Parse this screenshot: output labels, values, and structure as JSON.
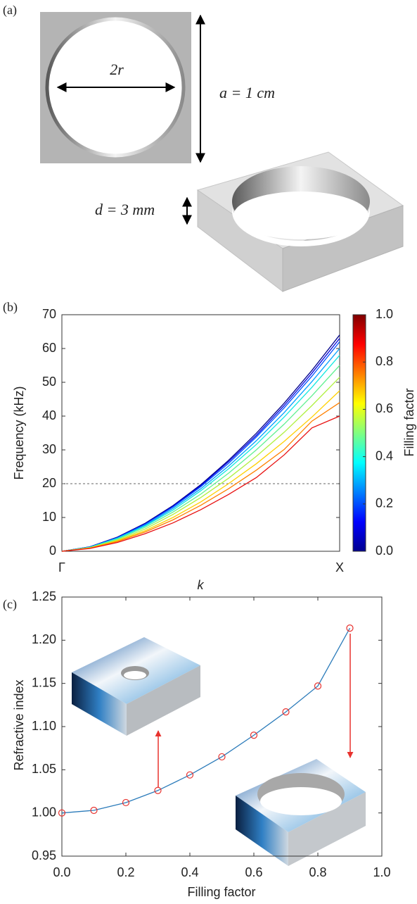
{
  "diagram": {
    "label": "(a)",
    "diameter": "2r",
    "period": "a = 1 cm",
    "thickness": "d = 3 mm"
  },
  "chart_data": [
    {
      "type": "line",
      "panel_label": "(b)",
      "xlabel": "k",
      "ylabel": "Frequency (kHz)",
      "x": [
        0,
        0.1,
        0.2,
        0.3,
        0.4,
        0.5,
        0.6,
        0.7,
        0.8,
        0.9,
        1
      ],
      "xlim": [
        0,
        1
      ],
      "xticks": [
        {
          "value": 0,
          "label": "Γ"
        },
        {
          "value": 1,
          "label": "X"
        }
      ],
      "ylim": [
        0,
        70
      ],
      "yticks": [
        0,
        10,
        20,
        30,
        40,
        50,
        60,
        70
      ],
      "hline": 20,
      "series": [
        {
          "color": "#00008a",
          "values": [
            0,
            1.3,
            4.2,
            8.3,
            13.5,
            19.7,
            26.9,
            34.9,
            43.8,
            53.5,
            64
          ]
        },
        {
          "color": "#0000e0",
          "values": [
            0,
            1.3,
            4.1,
            8.1,
            13.3,
            19.4,
            26.5,
            34.3,
            43.1,
            52.7,
            63
          ]
        },
        {
          "color": "#0050ff",
          "values": [
            0,
            1.2,
            4.0,
            8.0,
            13.1,
            19.1,
            26.0,
            33.8,
            42.4,
            51.8,
            62
          ]
        },
        {
          "color": "#00a0ff",
          "values": [
            0,
            1.2,
            3.9,
            7.7,
            12.7,
            18.5,
            25.2,
            32.7,
            41.0,
            50.2,
            60
          ]
        },
        {
          "color": "#10e8e0",
          "values": [
            0,
            1.2,
            3.8,
            7.5,
            12.2,
            17.9,
            24.4,
            31.6,
            39.7,
            48.5,
            58
          ]
        },
        {
          "color": "#60f090",
          "values": [
            0,
            1.1,
            3.6,
            7.1,
            11.6,
            16.9,
            23.1,
            30.0,
            37.6,
            46.0,
            55
          ]
        },
        {
          "color": "#b0f040",
          "values": [
            0,
            1.0,
            3.3,
            6.6,
            10.9,
            15.9,
            21.6,
            28.1,
            35.2,
            43.1,
            51.5
          ]
        },
        {
          "color": "#ffd000",
          "values": [
            0,
            1.0,
            3.1,
            6.1,
            10.0,
            14.6,
            20.0,
            25.9,
            32.5,
            39.7,
            47.5
          ]
        },
        {
          "color": "#ff8000",
          "values": [
            0,
            0.9,
            2.9,
            5.7,
            9.3,
            13.6,
            18.5,
            24.0,
            30.1,
            38.5,
            44
          ]
        },
        {
          "color": "#e81010",
          "values": [
            0,
            0.8,
            2.6,
            5.2,
            8.4,
            12.3,
            16.8,
            21.8,
            28.5,
            36.5,
            40
          ]
        }
      ],
      "colorbar": {
        "label": "Filling factor",
        "lim": [
          0,
          1
        ],
        "ticks": [
          {
            "value": 0,
            "label": "0.0"
          },
          0.2,
          0.4,
          0.6,
          0.8,
          {
            "value": 1,
            "label": "1.0"
          }
        ],
        "colormap": [
          "#00008f",
          "#0000ff",
          "#0080ff",
          "#00ffff",
          "#80ff80",
          "#ffff00",
          "#ff8000",
          "#ff0000",
          "#800000"
        ]
      }
    },
    {
      "type": "line",
      "panel_label": "(c)",
      "xlabel": "Filling factor",
      "ylabel": "Refractive index",
      "x": [
        0,
        0.1,
        0.2,
        0.3,
        0.4,
        0.5,
        0.6,
        0.7,
        0.8,
        0.9
      ],
      "xlim": [
        0,
        1
      ],
      "xticks": [
        {
          "value": 0,
          "label": "0.0"
        },
        0.2,
        0.4,
        0.6,
        0.8,
        {
          "value": 1,
          "label": "1.0"
        }
      ],
      "ylim": [
        0.95,
        1.25
      ],
      "yticks": [
        0.95,
        {
          "value": 1,
          "label": "1.00"
        },
        1.05,
        {
          "value": 1.1,
          "label": "1.10"
        },
        1.15,
        {
          "value": 1.2,
          "label": "1.20"
        },
        1.25
      ],
      "series": [
        {
          "color": "#2b7bba",
          "marker": "circle",
          "marker_color": "#e8322e",
          "values": [
            1.0,
            1.003,
            1.012,
            1.026,
            1.044,
            1.065,
            1.09,
            1.117,
            1.147,
            1.214
          ]
        }
      ]
    }
  ]
}
